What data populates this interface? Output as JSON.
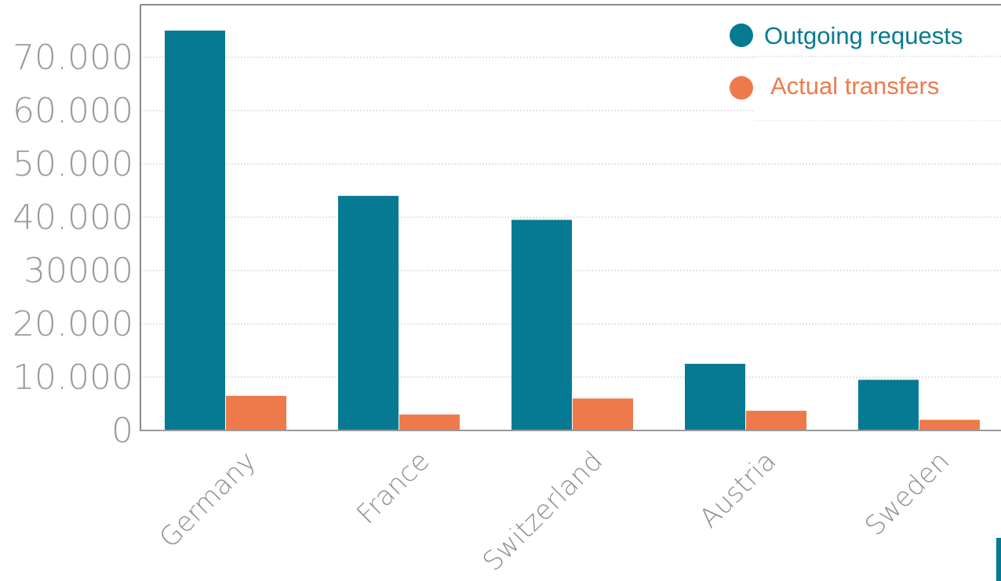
{
  "chart_data": {
    "type": "bar",
    "title": "",
    "xlabel": "",
    "ylabel": "",
    "categories": [
      "Germany",
      "France",
      "Switzerland",
      "Austria",
      "Sweden"
    ],
    "series": [
      {
        "name": "Outgoing requests",
        "values": [
          75000,
          44000,
          39500,
          12500,
          9500
        ],
        "color": "#067a92"
      },
      {
        "name": "Actual transfers",
        "values": [
          6500,
          3000,
          6000,
          3700,
          2000
        ],
        "color": "#ee7a4c"
      }
    ],
    "ylim": [
      0,
      80000
    ],
    "y_ticks": [
      0,
      10000,
      20000,
      30000,
      40000,
      50000,
      60000,
      70000
    ],
    "y_tick_labels": [
      "0",
      "10.000",
      "20.000",
      "30000",
      "40.000",
      "50.000",
      "60.000",
      "70.000"
    ],
    "grid": true,
    "legend_position": "top-right",
    "x_tick_rotation_deg": -45
  }
}
